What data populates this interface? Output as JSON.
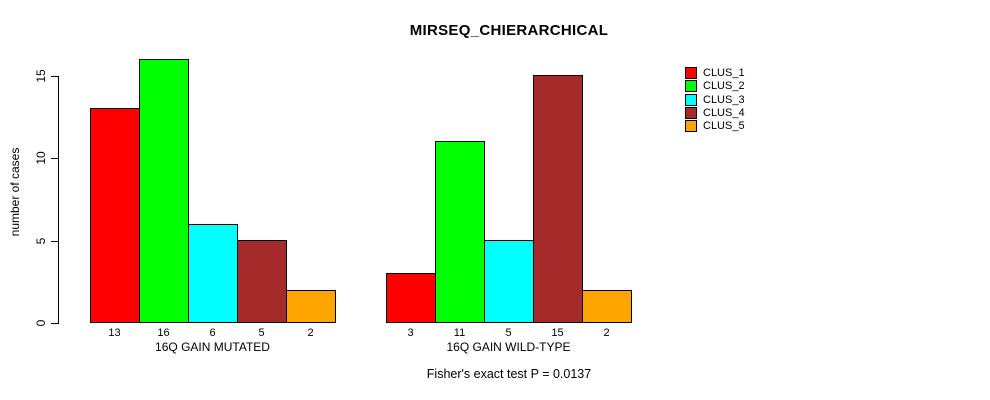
{
  "title": "MIRSEQ_CHIERARCHICAL",
  "y_axis": {
    "label": "number of cases",
    "ticks": [
      0,
      5,
      10,
      15
    ]
  },
  "x_groups": [
    {
      "label": "16Q GAIN MUTATED",
      "bar_values": [
        13,
        16,
        6,
        5,
        2
      ]
    },
    {
      "label": "16Q GAIN WILD-TYPE",
      "bar_values": [
        3,
        11,
        5,
        15,
        2
      ]
    }
  ],
  "legend": {
    "items": [
      {
        "label": "CLUS_1",
        "color": "#FF0000"
      },
      {
        "label": "CLUS_2",
        "color": "#00FF00"
      },
      {
        "label": "CLUS_3",
        "color": "#00FFFF"
      },
      {
        "label": "CLUS_4",
        "color": "#A52A2A"
      },
      {
        "label": "CLUS_5",
        "color": "#FFA500"
      }
    ]
  },
  "footer_note": "Fisher's exact test P = 0.0137",
  "chart_data": {
    "type": "bar",
    "title": "MIRSEQ_CHIERARCHICAL",
    "categories": [
      "16Q GAIN MUTATED",
      "16Q GAIN WILD-TYPE"
    ],
    "series": [
      {
        "name": "CLUS_1",
        "color": "#FF0000",
        "values": [
          13,
          3
        ]
      },
      {
        "name": "CLUS_2",
        "color": "#00FF00",
        "values": [
          16,
          11
        ]
      },
      {
        "name": "CLUS_3",
        "color": "#00FFFF",
        "values": [
          6,
          5
        ]
      },
      {
        "name": "CLUS_4",
        "color": "#A52A2A",
        "values": [
          5,
          15
        ]
      },
      {
        "name": "CLUS_5",
        "color": "#FFA500",
        "values": [
          2,
          2
        ]
      }
    ],
    "ylabel": "number of cases",
    "ylim": [
      0,
      16
    ],
    "yticks": [
      0,
      5,
      10,
      15
    ],
    "grid": false,
    "legend_position": "top-right",
    "bar_value_labels_shown": true,
    "annotation": "Fisher's exact test P = 0.0137"
  }
}
